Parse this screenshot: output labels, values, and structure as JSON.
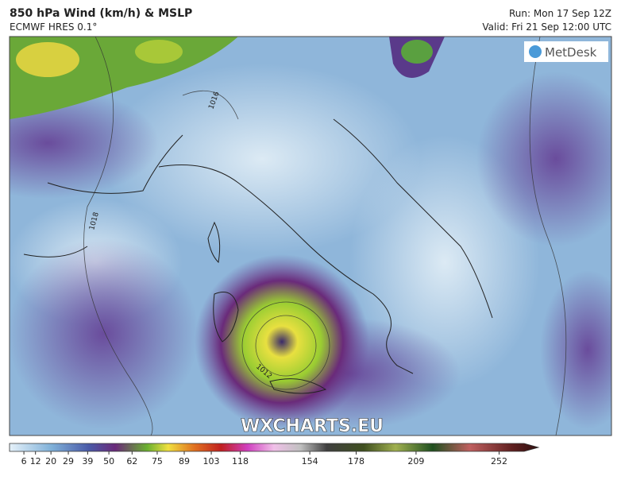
{
  "header": {
    "title": "850 hPa Wind (km/h) & MSLP",
    "subtitle": "ECMWF HRES 0.1°",
    "run": "Run: Mon 17 Sep 12Z",
    "valid": "Valid: Fri 21 Sep 12:00 UTC"
  },
  "map": {
    "logo": "MetDesk",
    "watermark": "WXCHARTS.EU",
    "isobar_labels": [
      "1016",
      "1018",
      "1012"
    ]
  },
  "colorbar": {
    "lim": [
      0,
      267
    ],
    "ticks": [
      6,
      12,
      20,
      29,
      39,
      50,
      62,
      75,
      89,
      103,
      118,
      154,
      178,
      209,
      252
    ]
  }
}
